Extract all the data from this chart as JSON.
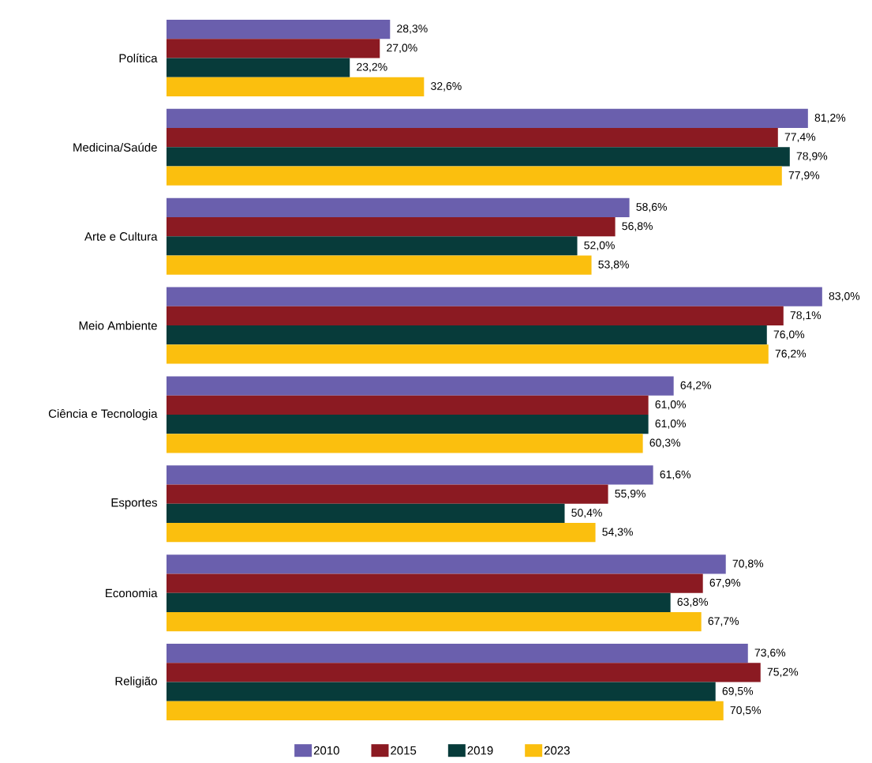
{
  "chart_data": {
    "type": "bar",
    "orientation": "horizontal",
    "tick_labels": "y",
    "legend": "bottom",
    "grid": false,
    "categories": [
      "Política",
      "Medicina/Saúde",
      "Arte e Cultura",
      "Meio Ambiente",
      "Ciência e Tecnologia",
      "Esportes",
      "Economia",
      "Religião"
    ],
    "series": [
      {
        "name": "2010",
        "color": "#6a5fad",
        "values": [
          28.3,
          81.2,
          58.6,
          83.0,
          64.2,
          61.6,
          70.8,
          73.6
        ],
        "value_labels": [
          "28,3%",
          "81,2%",
          "58,6%",
          "83,0%",
          "64,2%",
          "61,6%",
          "70,8%",
          "73,6%"
        ]
      },
      {
        "name": "2015",
        "color": "#8b1a22",
        "values": [
          27.0,
          77.4,
          56.8,
          78.1,
          61.0,
          55.9,
          67.9,
          75.2
        ],
        "value_labels": [
          "27,0%",
          "77,4%",
          "56,8%",
          "78,1%",
          "61,0%",
          "55,9%",
          "67,9%",
          "75,2%"
        ]
      },
      {
        "name": "2019",
        "color": "#073b3a",
        "values": [
          23.2,
          78.9,
          52.0,
          76.0,
          61.0,
          50.4,
          63.8,
          69.5
        ],
        "value_labels": [
          "23,2%",
          "78,9%",
          "52,0%",
          "76,0%",
          "61,0%",
          "50,4%",
          "63,8%",
          "69,5%"
        ]
      },
      {
        "name": "2023",
        "color": "#fbbf0e",
        "values": [
          32.6,
          77.9,
          53.8,
          76.2,
          60.3,
          54.3,
          67.7,
          70.5
        ],
        "value_labels": [
          "32,6%",
          "77,9%",
          "53,8%",
          "76,2%",
          "60,3%",
          "54,3%",
          "67,7%",
          "70,5%"
        ]
      }
    ]
  }
}
